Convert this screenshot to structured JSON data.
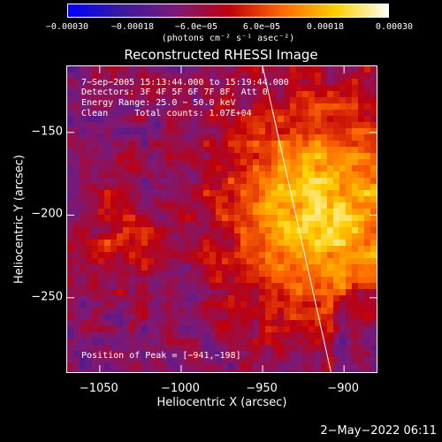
{
  "chart_data": {
    "type": "heatmap",
    "title": "Reconstructed RHESSI Image",
    "xlabel": "Heliocentric X (arcsec)",
    "ylabel": "Heliocentric Y (arcsec)",
    "xlim": [
      -1070,
      -880
    ],
    "ylim": [
      -295,
      -110
    ],
    "xticks": [
      -1050,
      -1000,
      -950,
      -900
    ],
    "xtick_labels": [
      "−1050",
      "−1000",
      "−950",
      "−900"
    ],
    "yticks": [
      -150,
      -200,
      -250
    ],
    "ytick_labels": [
      "−150",
      "−200",
      "−250"
    ],
    "colorbar": {
      "range": [
        -0.0003,
        0.0003
      ],
      "ticks": [
        "−0.00030",
        "−0.00018",
        "−6.0e−05",
        "6.0e−05",
        "0.00018",
        "0.00030"
      ],
      "units_label": "(photons cm⁻² s⁻¹ asec⁻²)",
      "colormap": [
        "#0000ff",
        "#3a1a9a",
        "#7a1a7a",
        "#c0000a",
        "#ff6a00",
        "#ffd000",
        "#ffffff"
      ]
    },
    "annotations": {
      "time": "7−Sep−2005 15:13:44.000 to 15:19:44.000",
      "detectors": "Detectors: 3F 4F 5F 6F 7F 8F, Att 0",
      "energy": "Energy Range: 25.0 − 50.0 keV",
      "method": "Clean     Total counts: 1.07E+04",
      "peak": "Position of Peak = [−941,−198]"
    },
    "peak_position": [
      -941,
      -198
    ],
    "limb_line": [
      [
        -950,
        -110
      ],
      [
        -908,
        -295
      ]
    ],
    "bright_region": {
      "x_center": -915,
      "y_center": -195
    }
  },
  "footer": {
    "timestamp": "2−May−2022 06:11"
  }
}
